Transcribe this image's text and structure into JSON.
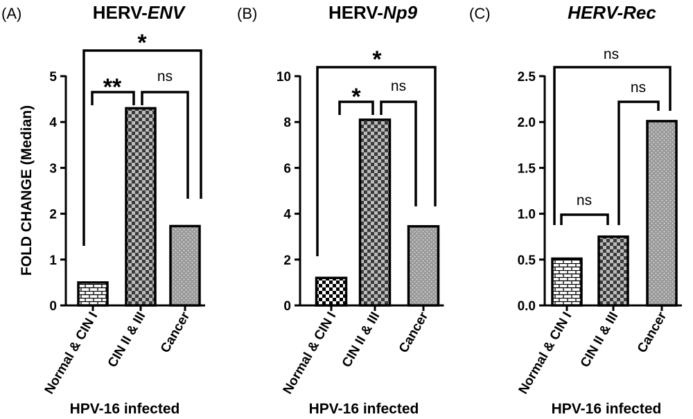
{
  "figure": {
    "ylabel": "FOLD CHANGE (Median)"
  },
  "chart_data": [
    {
      "type": "bar",
      "panel_label": "(A)",
      "title_plain": "HERV-",
      "title_italic": "ENV",
      "xlabel": "HPV-16 infected",
      "ylabel": "FOLD CHANGE (Median)",
      "categories": [
        "Normal & CIN I",
        "CIN II & III",
        "Cancer"
      ],
      "values": [
        0.5,
        4.3,
        1.73
      ],
      "ylim": [
        0,
        5
      ],
      "yticks": [
        "0",
        "1",
        "2",
        "3",
        "4",
        "5"
      ],
      "fills": [
        "brick",
        "checker-dark",
        "dotted-gray"
      ],
      "comparisons": [
        {
          "from": 0,
          "to": 2,
          "label": "*"
        },
        {
          "from": 0,
          "to": 1,
          "label": "**"
        },
        {
          "from": 1,
          "to": 2,
          "label": "ns"
        }
      ]
    },
    {
      "type": "bar",
      "panel_label": "(B)",
      "title_plain": "HERV-",
      "title_italic": "Np9",
      "xlabel": "HPV-16 infected",
      "ylabel": "",
      "categories": [
        "Normal & CIN I",
        "CIN II & III",
        "Cancer"
      ],
      "values": [
        1.2,
        8.1,
        3.45
      ],
      "ylim": [
        0,
        10
      ],
      "yticks": [
        "0",
        "2",
        "4",
        "6",
        "8",
        "10"
      ],
      "fills": [
        "checker-light",
        "checker-dark",
        "dotted-gray"
      ],
      "comparisons": [
        {
          "from": 0,
          "to": 2,
          "label": "*"
        },
        {
          "from": 0,
          "to": 1,
          "label": "*"
        },
        {
          "from": 1,
          "to": 2,
          "label": "ns"
        }
      ]
    },
    {
      "type": "bar",
      "panel_label": "(C)",
      "title_plain": "",
      "title_italic": "HERV-Rec",
      "xlabel": "HPV-16 infected",
      "ylabel": "",
      "categories": [
        "Normal & CIN I",
        "CIN II & III",
        "Cancer"
      ],
      "values": [
        0.51,
        0.75,
        2.01
      ],
      "ylim": [
        0,
        2.5
      ],
      "yticks": [
        "0.0",
        "0.5",
        "1.0",
        "1.5",
        "2.0",
        "2.5"
      ],
      "fills": [
        "brick",
        "checker-dark",
        "dotted-gray"
      ],
      "comparisons": [
        {
          "from": 0,
          "to": 2,
          "label": "ns"
        },
        {
          "from": 1,
          "to": 2,
          "label": "ns"
        },
        {
          "from": 0,
          "to": 1,
          "label": "ns"
        }
      ]
    }
  ]
}
